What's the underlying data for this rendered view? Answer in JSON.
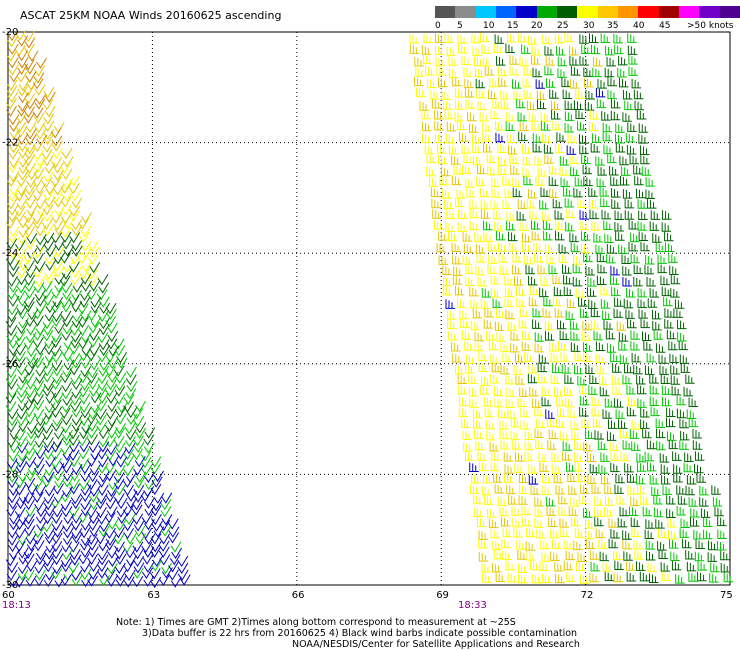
{
  "title": "ASCAT 25KM NOAA Winds 20160625 ascending",
  "legend": {
    "labels": [
      "0",
      "5",
      "10",
      "15",
      "20",
      "25",
      "30",
      "35",
      "40",
      "45",
      ">50 knots"
    ],
    "colors": [
      "#555555",
      "#8c8c8c",
      "#00c8ff",
      "#0064ff",
      "#0000c8",
      "#00aa00",
      "#005c00",
      "#ffff00",
      "#ffc800",
      "#ff9600",
      "#ff0000",
      "#a00000",
      "#ff00ff",
      "#7000c8",
      "#500090"
    ]
  },
  "map": {
    "lat_labels": [
      "-20",
      "-22",
      "-24",
      "-26",
      "-28",
      "-30"
    ],
    "lon_labels": [
      "60",
      "63",
      "66",
      "69",
      "72",
      "75"
    ],
    "times": [
      "18:13",
      "18:33"
    ],
    "barb_colors": {
      "yellow": "#ffff00",
      "gold": "#e6c800",
      "orange": "#d08000",
      "green_light": "#00c800",
      "green_dark": "#006400",
      "blue": "#0000c8"
    }
  },
  "notes": {
    "line1": "Note:  1) Times are GMT  2)Times along bottom correspond to measurement at ~25S",
    "line2": "3)Data buffer is 22 hrs from 20160625  4) Black wind barbs indicate possible contamination",
    "line3": "NOAA/NESDIS/Center for Satellite Applications and Research"
  }
}
